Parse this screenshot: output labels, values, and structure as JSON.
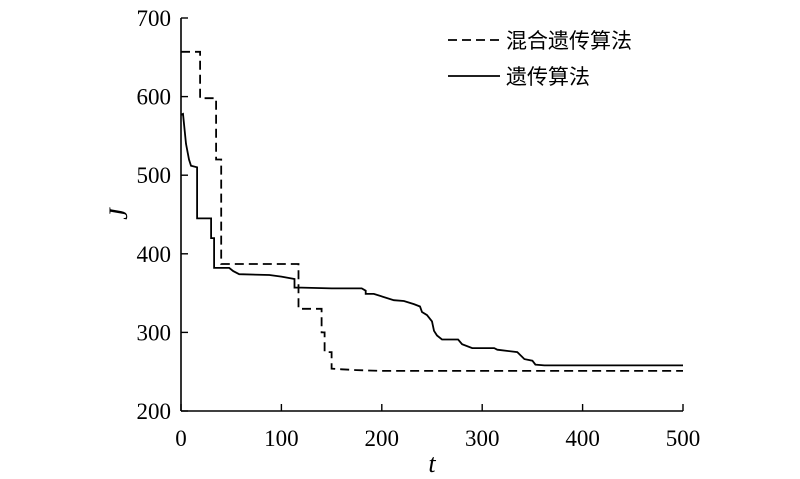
{
  "chart_data": {
    "type": "line",
    "xlabel": "t",
    "ylabel": "J",
    "xlim": [
      0,
      500
    ],
    "ylim": [
      200,
      700
    ],
    "xticks": [
      0,
      100,
      200,
      300,
      400,
      500
    ],
    "yticks": [
      200,
      300,
      400,
      500,
      600,
      700
    ],
    "grid": false,
    "legend_position": "top-right",
    "series": [
      {
        "name": "混合遗传算法",
        "style": "dashed",
        "color": "#000000",
        "x": [
          0,
          19,
          19,
          35,
          35,
          40,
          40,
          117,
          117,
          140,
          140,
          143,
          143,
          150,
          150,
          160,
          175,
          200,
          300,
          500
        ],
        "y": [
          657,
          657,
          598,
          598,
          520,
          520,
          387,
          387,
          330,
          330,
          300,
          300,
          275,
          275,
          254,
          253,
          252,
          251,
          251,
          251
        ]
      },
      {
        "name": "遗传算法",
        "style": "solid",
        "color": "#000000",
        "x": [
          0,
          2,
          5,
          8,
          10,
          10,
          16,
          16,
          30,
          30,
          33,
          33,
          48,
          52,
          58,
          88,
          100,
          113,
          113,
          120,
          150,
          180,
          184,
          184,
          192,
          212,
          222,
          232,
          238,
          240,
          245,
          250,
          252,
          255,
          260,
          276,
          280,
          290,
          312,
          315,
          335,
          342,
          350,
          353,
          362,
          400,
          500
        ],
        "y": [
          577,
          578,
          540,
          520,
          512,
          512,
          510,
          445,
          445,
          420,
          420,
          382,
          382,
          378,
          374,
          373,
          371,
          368,
          357,
          357,
          356,
          356,
          353,
          349,
          349,
          341,
          340,
          336,
          333,
          326,
          322,
          314,
          302,
          296,
          291,
          291,
          285,
          280,
          280,
          278,
          275,
          266,
          264,
          259,
          258,
          258,
          258
        ]
      }
    ]
  }
}
